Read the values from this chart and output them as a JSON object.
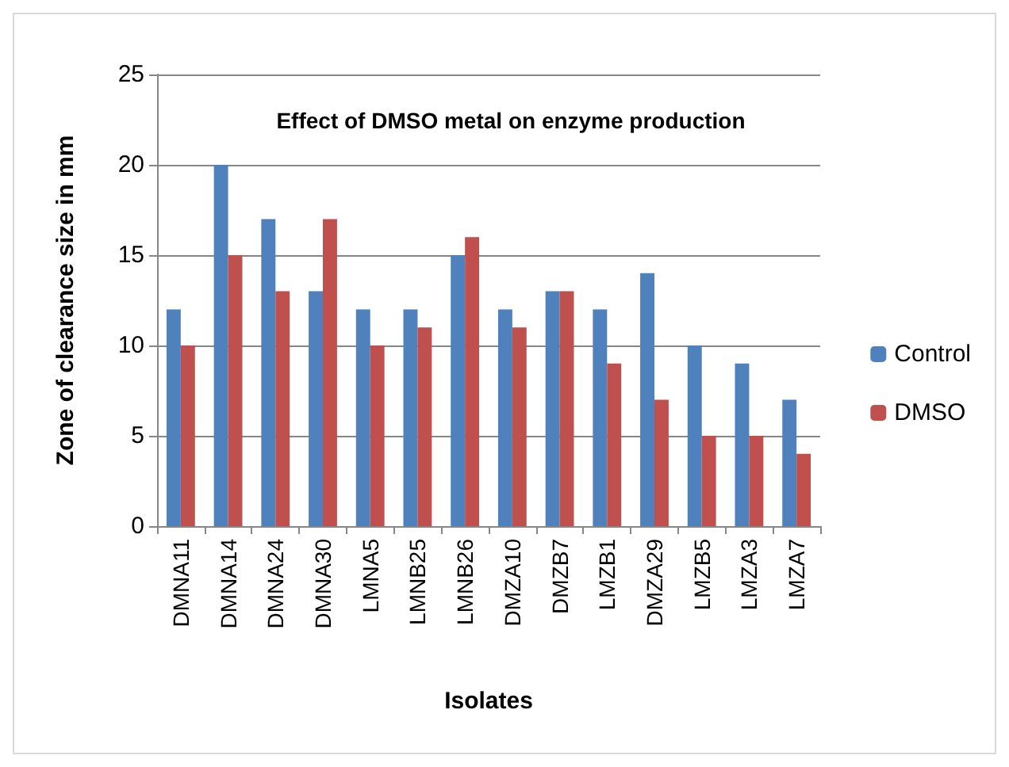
{
  "chart_data": {
    "type": "bar",
    "title": "Effect of DMSO metal on enzyme production",
    "xlabel": "Isolates",
    "ylabel": "Zone of clearance size in mm",
    "categories": [
      "DMNA11",
      "DMNA14",
      "DMNA24",
      "DMNA30",
      "LMNA5",
      "LMNB25",
      "LMNB26",
      "DMZA10",
      "DMZB7",
      "LMZB1",
      "DMZA29",
      "LMZB5",
      "LMZA3",
      "LMZA7"
    ],
    "series": [
      {
        "name": "Control",
        "color": "#4f81bd",
        "values": [
          12,
          20,
          17,
          13,
          12,
          12,
          15,
          12,
          13,
          12,
          14,
          10,
          9,
          7
        ]
      },
      {
        "name": "DMSO",
        "color": "#c0504d",
        "values": [
          10,
          15,
          13,
          17,
          10,
          11,
          16,
          11,
          13,
          9,
          7,
          5,
          5,
          4
        ]
      }
    ],
    "ylim": [
      0,
      25
    ],
    "yticks": [
      0,
      5,
      10,
      15,
      20,
      25
    ],
    "grid": "y",
    "legend": "right"
  }
}
